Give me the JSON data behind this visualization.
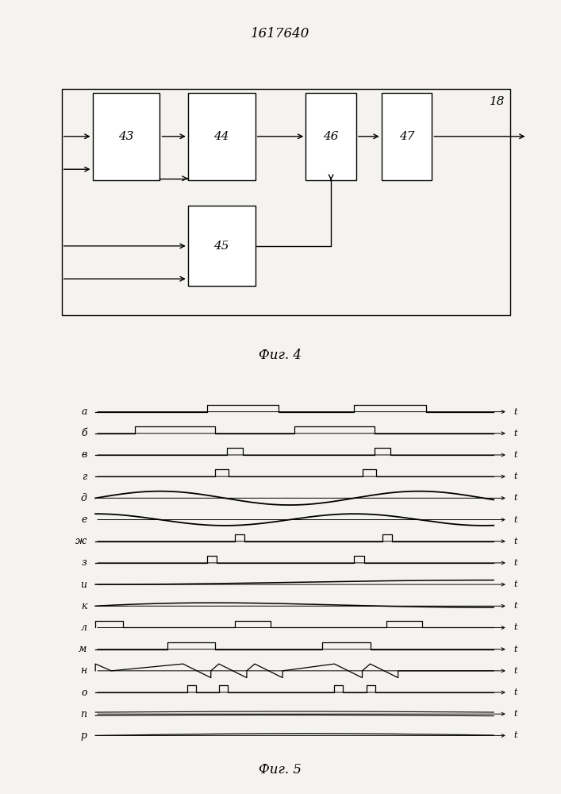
{
  "title": "1617640",
  "fig4_caption": "Фиг. 4",
  "fig5_caption": "Фиг. 5",
  "bg_color": "#f5f3f0",
  "signal_labels": [
    "а",
    "б",
    "в",
    "г",
    "д",
    "е",
    "ж",
    "з",
    "и",
    "к",
    "л",
    "м",
    "н",
    "о",
    "п",
    "р"
  ]
}
